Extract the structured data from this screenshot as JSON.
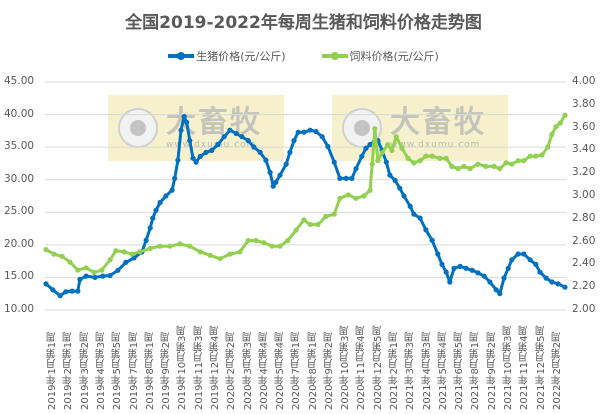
{
  "title": "全国2019-2022年每周生猪和饲料价格走势图",
  "legend": [
    {
      "label": "生猪价格(元/公斤)",
      "color": "#0070C0"
    },
    {
      "label": "饲料价格(元/公斤)",
      "color": "#92D050"
    }
  ],
  "watermarks": [
    {
      "brand": "大畜牧",
      "url": "www.dxumu.com"
    },
    {
      "brand": "大畜牧",
      "url": "www.dxumu.com"
    }
  ],
  "chart_data": {
    "type": "line",
    "title": "全国2019-2022年每周生猪和饲料价格走势图",
    "xlabel": "",
    "ylabel": "",
    "y_left": {
      "label": "生猪价格(元/公斤)",
      "ylim": [
        10,
        45
      ],
      "ticks": [
        "45.00",
        "40.00",
        "35.00",
        "30.00",
        "25.00",
        "20.00",
        "15.00",
        "10.00"
      ]
    },
    "y_right": {
      "label": "饲料价格(元/公斤)",
      "ylim": [
        2.0,
        4.0
      ],
      "ticks": [
        "4.00",
        "3.80",
        "3.60",
        "3.40",
        "3.20",
        "3.00",
        "2.80",
        "2.60",
        "2.40",
        "2.20",
        "2.00"
      ]
    },
    "grid": true,
    "legend_position": "top",
    "categories": [
      "2019年1月第1周",
      "2019年2月第1周",
      "2019年3月第2周",
      "2019年4月第3周",
      "2019年5月第5周",
      "2019年7月第1周",
      "2019年8月第1周",
      "2019年9月第2周",
      "2019年10月第3周",
      "2019年11月第3周",
      "2019年12月第4周",
      "2020年2月第2周",
      "2020年3月第3周",
      "2020年4月第4周",
      "2020年5月第4周",
      "2020年7月第1周",
      "2020年8月第1周",
      "2020年9月第2周",
      "2020年10月第3周",
      "2020年11月第4周",
      "2020年12月第5周",
      "2021年2月第1周",
      "2021年3月第3周",
      "2021年4月第3周",
      "2021年5月第4周",
      "2021年6月第5周",
      "2021年8月第1周",
      "2021年9月第2周",
      "2021年10月第3周",
      "2021年11月第4周",
      "2021年12月第5周",
      "2022年2月第2周"
    ],
    "series": [
      {
        "name": "生猪价格(元/公斤)",
        "axis": "left",
        "color": "#0070C0",
        "points": [
          [
            0.002,
            14.0
          ],
          [
            0.015,
            13.1
          ],
          [
            0.029,
            12.2
          ],
          [
            0.04,
            12.8
          ],
          [
            0.052,
            12.9
          ],
          [
            0.063,
            12.9
          ],
          [
            0.067,
            14.7
          ],
          [
            0.079,
            15.2
          ],
          [
            0.096,
            15.0
          ],
          [
            0.111,
            15.2
          ],
          [
            0.125,
            15.3
          ],
          [
            0.14,
            16.1
          ],
          [
            0.155,
            17.3
          ],
          [
            0.171,
            18.0
          ],
          [
            0.186,
            18.9
          ],
          [
            0.194,
            20.7
          ],
          [
            0.202,
            22.6
          ],
          [
            0.207,
            24.1
          ],
          [
            0.213,
            25.3
          ],
          [
            0.221,
            26.5
          ],
          [
            0.232,
            27.5
          ],
          [
            0.244,
            28.4
          ],
          [
            0.249,
            30.2
          ],
          [
            0.255,
            33.0
          ],
          [
            0.261,
            37.6
          ],
          [
            0.267,
            39.7
          ],
          [
            0.272,
            38.8
          ],
          [
            0.278,
            36.0
          ],
          [
            0.284,
            33.3
          ],
          [
            0.29,
            32.7
          ],
          [
            0.298,
            33.6
          ],
          [
            0.309,
            34.2
          ],
          [
            0.32,
            34.5
          ],
          [
            0.332,
            35.4
          ],
          [
            0.344,
            36.6
          ],
          [
            0.355,
            37.6
          ],
          [
            0.367,
            37.1
          ],
          [
            0.378,
            36.6
          ],
          [
            0.39,
            36.0
          ],
          [
            0.401,
            35.0
          ],
          [
            0.413,
            34.2
          ],
          [
            0.424,
            33.0
          ],
          [
            0.432,
            31.1
          ],
          [
            0.438,
            29.0
          ],
          [
            0.443,
            29.6
          ],
          [
            0.451,
            30.7
          ],
          [
            0.463,
            32.4
          ],
          [
            0.47,
            34.2
          ],
          [
            0.478,
            36.0
          ],
          [
            0.486,
            37.3
          ],
          [
            0.497,
            37.3
          ],
          [
            0.509,
            37.6
          ],
          [
            0.52,
            37.4
          ],
          [
            0.532,
            36.6
          ],
          [
            0.543,
            35.1
          ],
          [
            0.555,
            32.7
          ],
          [
            0.566,
            30.2
          ],
          [
            0.578,
            30.2
          ],
          [
            0.589,
            30.2
          ],
          [
            0.597,
            31.7
          ],
          [
            0.608,
            33.6
          ],
          [
            0.616,
            34.8
          ],
          [
            0.624,
            35.4
          ],
          [
            0.631,
            35.7
          ],
          [
            0.639,
            36.0
          ],
          [
            0.647,
            34.5
          ],
          [
            0.655,
            32.7
          ],
          [
            0.662,
            30.7
          ],
          [
            0.672,
            29.9
          ],
          [
            0.681,
            28.7
          ],
          [
            0.689,
            27.5
          ],
          [
            0.701,
            25.9
          ],
          [
            0.708,
            24.7
          ],
          [
            0.72,
            24.1
          ],
          [
            0.731,
            22.3
          ],
          [
            0.743,
            20.7
          ],
          [
            0.754,
            18.6
          ],
          [
            0.762,
            17.0
          ],
          [
            0.77,
            15.8
          ],
          [
            0.777,
            14.3
          ],
          [
            0.785,
            16.4
          ],
          [
            0.797,
            16.7
          ],
          [
            0.808,
            16.4
          ],
          [
            0.82,
            16.1
          ],
          [
            0.831,
            15.7
          ],
          [
            0.843,
            15.2
          ],
          [
            0.854,
            14.3
          ],
          [
            0.866,
            13.1
          ],
          [
            0.873,
            12.5
          ],
          [
            0.881,
            14.9
          ],
          [
            0.889,
            16.4
          ],
          [
            0.896,
            17.7
          ],
          [
            0.908,
            18.6
          ],
          [
            0.919,
            18.6
          ],
          [
            0.931,
            17.7
          ],
          [
            0.942,
            17.0
          ],
          [
            0.95,
            15.8
          ],
          [
            0.962,
            14.9
          ],
          [
            0.973,
            14.3
          ],
          [
            0.985,
            14.0
          ],
          [
            0.998,
            13.5
          ]
        ]
      },
      {
        "name": "饲料价格(元/公斤)",
        "axis": "right",
        "color": "#92D050",
        "points": [
          [
            0.002,
            2.53
          ],
          [
            0.017,
            2.49
          ],
          [
            0.033,
            2.47
          ],
          [
            0.048,
            2.42
          ],
          [
            0.063,
            2.35
          ],
          [
            0.079,
            2.37
          ],
          [
            0.094,
            2.33
          ],
          [
            0.109,
            2.35
          ],
          [
            0.125,
            2.44
          ],
          [
            0.136,
            2.52
          ],
          [
            0.152,
            2.51
          ],
          [
            0.167,
            2.49
          ],
          [
            0.182,
            2.51
          ],
          [
            0.202,
            2.54
          ],
          [
            0.221,
            2.56
          ],
          [
            0.24,
            2.56
          ],
          [
            0.259,
            2.58
          ],
          [
            0.278,
            2.56
          ],
          [
            0.298,
            2.51
          ],
          [
            0.317,
            2.48
          ],
          [
            0.336,
            2.45
          ],
          [
            0.355,
            2.49
          ],
          [
            0.374,
            2.51
          ],
          [
            0.39,
            2.61
          ],
          [
            0.405,
            2.61
          ],
          [
            0.42,
            2.59
          ],
          [
            0.436,
            2.56
          ],
          [
            0.451,
            2.56
          ],
          [
            0.466,
            2.61
          ],
          [
            0.482,
            2.7
          ],
          [
            0.497,
            2.79
          ],
          [
            0.509,
            2.75
          ],
          [
            0.524,
            2.75
          ],
          [
            0.539,
            2.82
          ],
          [
            0.555,
            2.84
          ],
          [
            0.566,
            2.98
          ],
          [
            0.582,
            3.01
          ],
          [
            0.597,
            2.98
          ],
          [
            0.612,
            3.0
          ],
          [
            0.624,
            3.05
          ],
          [
            0.628,
            3.28
          ],
          [
            0.633,
            3.59
          ],
          [
            0.639,
            3.31
          ],
          [
            0.647,
            3.38
          ],
          [
            0.658,
            3.45
          ],
          [
            0.666,
            3.4
          ],
          [
            0.674,
            3.52
          ],
          [
            0.685,
            3.42
          ],
          [
            0.697,
            3.33
          ],
          [
            0.708,
            3.29
          ],
          [
            0.72,
            3.31
          ],
          [
            0.731,
            3.35
          ],
          [
            0.743,
            3.35
          ],
          [
            0.758,
            3.33
          ],
          [
            0.77,
            3.33
          ],
          [
            0.781,
            3.26
          ],
          [
            0.793,
            3.24
          ],
          [
            0.804,
            3.26
          ],
          [
            0.816,
            3.24
          ],
          [
            0.831,
            3.28
          ],
          [
            0.846,
            3.26
          ],
          [
            0.862,
            3.26
          ],
          [
            0.873,
            3.24
          ],
          [
            0.885,
            3.29
          ],
          [
            0.896,
            3.28
          ],
          [
            0.908,
            3.31
          ],
          [
            0.919,
            3.31
          ],
          [
            0.931,
            3.35
          ],
          [
            0.942,
            3.35
          ],
          [
            0.954,
            3.36
          ],
          [
            0.965,
            3.43
          ],
          [
            0.973,
            3.54
          ],
          [
            0.981,
            3.61
          ],
          [
            0.989,
            3.64
          ],
          [
            0.998,
            3.71
          ]
        ]
      }
    ]
  }
}
